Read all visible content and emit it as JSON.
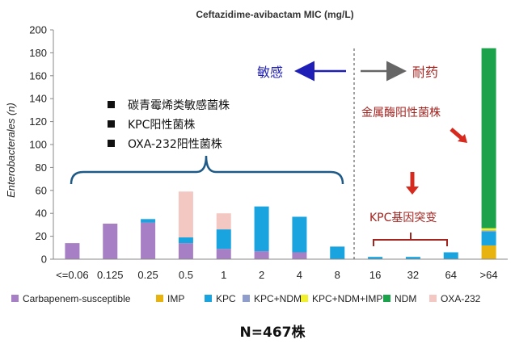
{
  "chart_data": {
    "type": "bar",
    "stacked": true,
    "title": "Ceftazidime-avibactam MIC (mg/L)",
    "ylabel": "Enterobacterales (n)",
    "xlabel": "",
    "ylim": [
      0,
      200
    ],
    "yticks": [
      0,
      20,
      40,
      60,
      80,
      100,
      120,
      140,
      160,
      180,
      200
    ],
    "grid": false,
    "legend_position": "bottom",
    "categories": [
      "<=0.06",
      "0.125",
      "0.25",
      "0.5",
      "1",
      "2",
      "4",
      "8",
      "16",
      "32",
      "64",
      ">64"
    ],
    "series": [
      {
        "name": "Carbapenem-susceptible",
        "color": "#a77fc4",
        "values": [
          14,
          31,
          32,
          14,
          9,
          7,
          6,
          0,
          0,
          0,
          0,
          0
        ]
      },
      {
        "name": "IMP",
        "color": "#e9b30f",
        "values": [
          0,
          0,
          0,
          0,
          0,
          0,
          0,
          0,
          0,
          0,
          0,
          12
        ]
      },
      {
        "name": "KPC",
        "color": "#1aa4df",
        "values": [
          0,
          0,
          3,
          5,
          17,
          39,
          31,
          11,
          2,
          2,
          6,
          12
        ]
      },
      {
        "name": "KPC+NDM",
        "color": "#8f9dcc",
        "values": [
          0,
          0,
          0,
          0,
          0,
          0,
          0,
          0,
          0,
          0,
          0,
          1
        ]
      },
      {
        "name": "KPC+NDM+IMP",
        "color": "#f2ef2b",
        "values": [
          0,
          0,
          0,
          0,
          0,
          0,
          0,
          0,
          0,
          0,
          0,
          2
        ]
      },
      {
        "name": "NDM",
        "color": "#1ca24a",
        "values": [
          0,
          0,
          0,
          0,
          0,
          0,
          0,
          0,
          0,
          0,
          0,
          157
        ]
      },
      {
        "name": "OXA-232",
        "color": "#f3c8c2",
        "values": [
          0,
          0,
          0,
          40,
          14,
          0,
          0,
          0,
          0,
          0,
          0,
          0
        ]
      }
    ],
    "annotations": {
      "sensitive_label": "敏感",
      "resistant_label": "耐药",
      "bracket_group_items": [
        "碳青霉烯类敏感菌株",
        "KPC阳性菌株",
        "OXA-232阳性菌株"
      ],
      "kpc_mutation_label": "KPC基因突变",
      "metallo_label": "金属酶阳性菌株"
    },
    "footer": "N=467株"
  }
}
